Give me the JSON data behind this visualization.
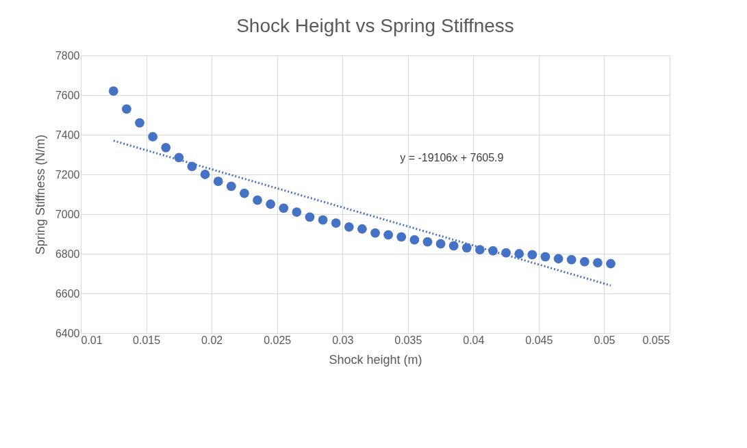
{
  "chart_data": {
    "type": "scatter",
    "title": "Shock Height vs Spring Stiffness",
    "xlabel": "Shock height (m)",
    "ylabel": "Spring Stiffness (N/m)",
    "xlim": [
      0.01,
      0.055
    ],
    "xticks": [
      0.01,
      0.015,
      0.02,
      0.025,
      0.03,
      0.035,
      0.04,
      0.045,
      0.05,
      0.055
    ],
    "ylim": [
      6400,
      7800
    ],
    "yticks": [
      6400,
      6600,
      6800,
      7000,
      7200,
      7400,
      7600,
      7800
    ],
    "grid": true,
    "annotations": [
      "y = -19106x + 7605.9"
    ],
    "series": [
      {
        "color": "#4472c4",
        "marker": "circle",
        "x": [
          0.0125,
          0.0135,
          0.0145,
          0.0155,
          0.0165,
          0.0175,
          0.0185,
          0.0195,
          0.0205,
          0.0215,
          0.0225,
          0.0235,
          0.0245,
          0.0255,
          0.0265,
          0.0275,
          0.0285,
          0.0295,
          0.0305,
          0.0315,
          0.0325,
          0.0335,
          0.0345,
          0.0355,
          0.0365,
          0.0375,
          0.0385,
          0.0395,
          0.0405,
          0.0415,
          0.0425,
          0.0435,
          0.0445,
          0.0455,
          0.0465,
          0.0475,
          0.0485,
          0.0495,
          0.0505
        ],
        "values": [
          7620,
          7530,
          7460,
          7390,
          7335,
          7285,
          7240,
          7200,
          7165,
          7140,
          7105,
          7070,
          7050,
          7030,
          7010,
          6985,
          6970,
          6955,
          6935,
          6925,
          6905,
          6895,
          6885,
          6870,
          6860,
          6850,
          6840,
          6830,
          6820,
          6815,
          6805,
          6800,
          6795,
          6785,
          6775,
          6770,
          6760,
          6755,
          6750
        ]
      },
      {
        "type": "line",
        "color": "#4472c4",
        "line_style": "dotted",
        "marker": "none",
        "x": [
          0.0125,
          0.0505
        ],
        "values": [
          7370,
          6640
        ]
      }
    ]
  }
}
